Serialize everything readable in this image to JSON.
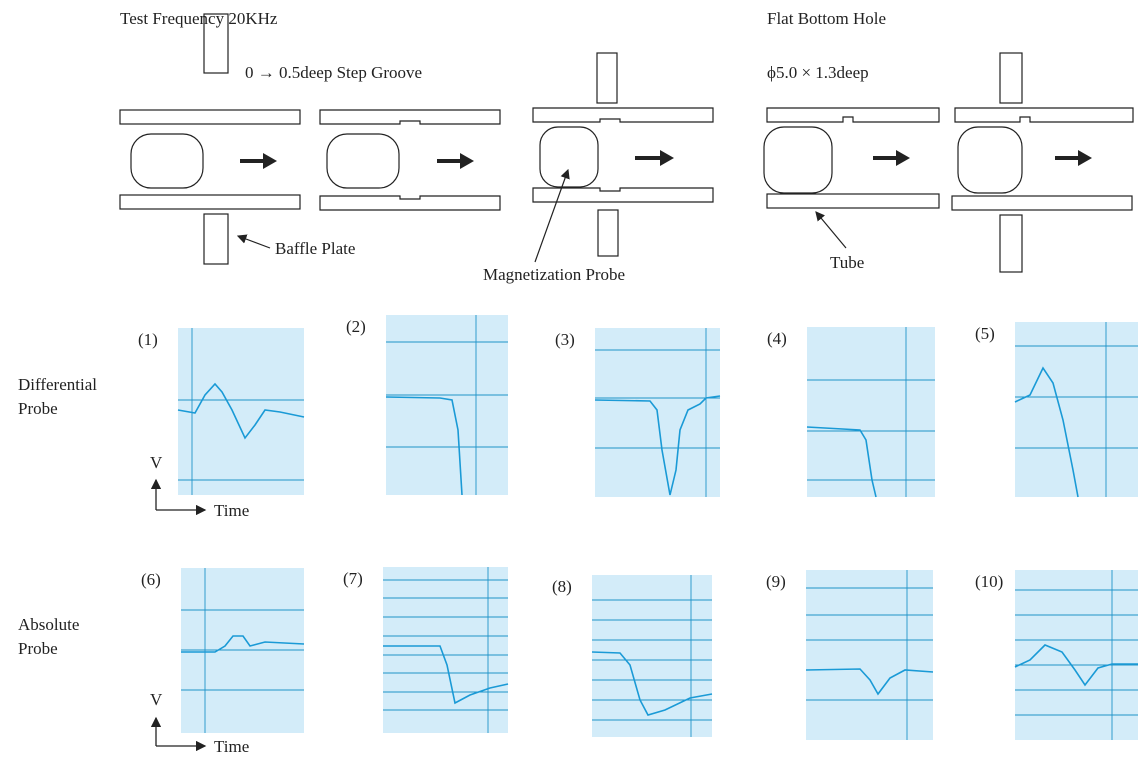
{
  "header": {
    "left": "Test Frequency 20KHz",
    "right": "Flat Bottom Hole"
  },
  "defects": {
    "groove": "0 → 0.5deep Step Groove",
    "hole": "ϕ5.0 × 1.3deep"
  },
  "callouts": {
    "baffle": "Baffle Plate",
    "probe": "Magnetization Probe",
    "tube": "Tube"
  },
  "rows": [
    {
      "label": [
        "Differential",
        "Probe"
      ],
      "axis_v": "V",
      "axis_t": "Time"
    },
    {
      "label": [
        "Absolute",
        "Probe"
      ],
      "axis_v": "V",
      "axis_t": "Time"
    }
  ],
  "panels": [
    "(1)",
    "(2)",
    "(3)",
    "(4)",
    "(5)",
    "(6)",
    "(7)",
    "(8)",
    "(9)",
    "(10)"
  ]
}
